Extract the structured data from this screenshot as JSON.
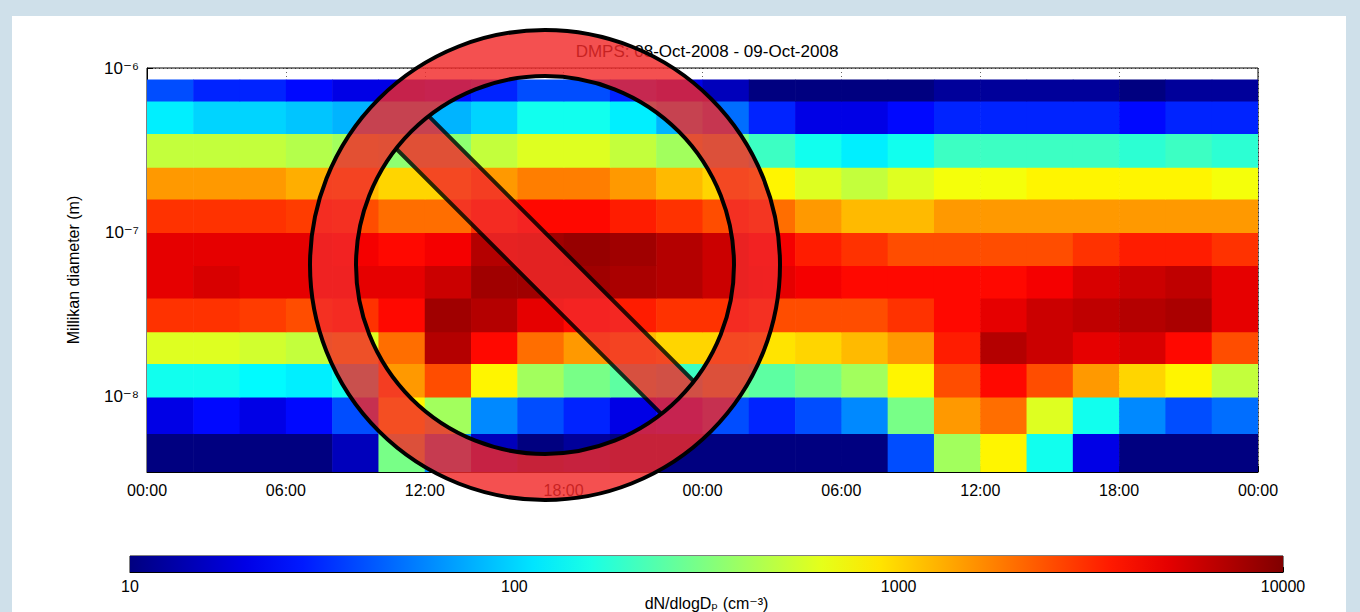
{
  "chart_data": {
    "type": "heatmap",
    "title": "DMPS: 08-Oct-2008 - 09-Oct-2008",
    "y_label": "Millikan diameter (m)",
    "log": "y",
    "grid": true,
    "xlim": [
      0,
      48
    ],
    "xticks": [
      {
        "value": 0,
        "label": "00:00"
      },
      {
        "value": 6,
        "label": "06:00"
      },
      {
        "value": 12,
        "label": "12:00"
      },
      {
        "value": 18,
        "label": "18:00"
      },
      {
        "value": 24,
        "label": "00:00"
      },
      {
        "value": 30,
        "label": "06:00"
      },
      {
        "value": 36,
        "label": "12:00"
      },
      {
        "value": 42,
        "label": "18:00"
      },
      {
        "value": 48,
        "label": "00:00"
      }
    ],
    "ylim": [
      3.5e-09,
      1e-06
    ],
    "yticks": [
      {
        "value": 1e-08,
        "label": "10⁻⁸"
      },
      {
        "value": 1e-07,
        "label": "10⁻⁷"
      },
      {
        "value": 1e-06,
        "label": "10⁻⁶"
      }
    ],
    "x_bins": [
      0,
      2,
      4,
      6,
      8,
      10,
      12,
      14,
      16,
      18,
      20,
      22,
      24,
      26,
      28,
      30,
      32,
      34,
      36,
      38,
      40,
      42,
      44,
      46,
      48
    ],
    "y_bins": [
      3.5e-09,
      6e-09,
      1e-08,
      1.6e-08,
      2.5e-08,
      4e-08,
      6.3e-08,
      1e-07,
      1.6e-07,
      2.5e-07,
      4e-07,
      6.3e-07,
      8.5e-07
    ],
    "cells": [
      [
        10,
        10,
        10,
        10,
        15,
        300,
        60,
        15,
        10,
        12,
        10,
        10,
        10,
        10,
        10,
        10,
        40,
        400,
        800,
        150,
        20,
        10,
        10,
        10
      ],
      [
        20,
        25,
        20,
        25,
        40,
        800,
        400,
        60,
        40,
        30,
        20,
        25,
        40,
        30,
        40,
        60,
        300,
        1500,
        2000,
        600,
        150,
        60,
        40,
        50
      ],
      [
        150,
        150,
        130,
        120,
        150,
        1500,
        2500,
        800,
        400,
        300,
        250,
        200,
        300,
        250,
        300,
        400,
        800,
        2500,
        4000,
        2500,
        1500,
        1000,
        800,
        500
      ],
      [
        600,
        600,
        550,
        500,
        600,
        2000,
        7000,
        4000,
        2000,
        1500,
        1200,
        1000,
        1000,
        900,
        1000,
        1200,
        1500,
        3500,
        7000,
        6000,
        5000,
        5500,
        4000,
        2500
      ],
      [
        3000,
        3000,
        2800,
        2500,
        3000,
        4000,
        8000,
        7000,
        5000,
        4000,
        3500,
        3000,
        3000,
        2500,
        2500,
        2500,
        3000,
        4000,
        5000,
        6000,
        6500,
        7000,
        7500,
        5000
      ],
      [
        5000,
        5500,
        5000,
        5000,
        5000,
        5000,
        6000,
        8000,
        8000,
        8000,
        7500,
        7000,
        6000,
        5000,
        4500,
        4000,
        4000,
        4000,
        4000,
        4500,
        5500,
        6000,
        6500,
        5000
      ],
      [
        5000,
        5000,
        5000,
        5000,
        4500,
        4000,
        4500,
        7000,
        8000,
        8500,
        8000,
        7000,
        6000,
        4500,
        3500,
        3000,
        2500,
        2500,
        2500,
        2500,
        3000,
        3500,
        3500,
        3000
      ],
      [
        3000,
        3000,
        3000,
        2800,
        2500,
        2000,
        2000,
        3000,
        4000,
        4000,
        3500,
        3000,
        2500,
        2000,
        1500,
        1200,
        1200,
        1500,
        1500,
        1500,
        1500,
        1500,
        1500,
        1500
      ],
      [
        1500,
        1500,
        1500,
        1300,
        1200,
        1000,
        1000,
        1500,
        1800,
        1800,
        1500,
        1200,
        1000,
        800,
        600,
        500,
        600,
        700,
        700,
        800,
        800,
        800,
        800,
        700
      ],
      [
        500,
        500,
        500,
        450,
        400,
        350,
        350,
        500,
        600,
        600,
        500,
        400,
        300,
        200,
        150,
        120,
        150,
        200,
        200,
        200,
        200,
        180,
        200,
        180
      ],
      [
        120,
        100,
        100,
        90,
        80,
        80,
        80,
        100,
        150,
        150,
        120,
        80,
        50,
        30,
        20,
        20,
        25,
        30,
        30,
        30,
        30,
        25,
        30,
        30
      ],
      [
        40,
        30,
        30,
        25,
        20,
        20,
        25,
        30,
        40,
        40,
        30,
        20,
        15,
        10,
        10,
        10,
        10,
        12,
        12,
        12,
        12,
        10,
        12,
        12
      ]
    ],
    "colorbar": {
      "label": "dN/dlogDₚ (cm⁻³)",
      "range": [
        10,
        10000
      ],
      "ticks": [
        10,
        100,
        1000,
        10000
      ],
      "log": true
    }
  }
}
